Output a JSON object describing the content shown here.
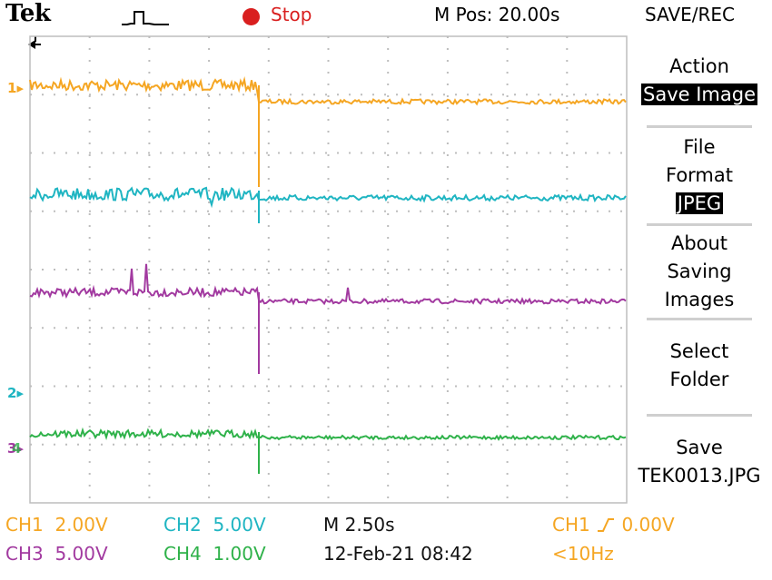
{
  "header": {
    "brand": "Tek",
    "acq_symbol": "trigger-waveform-icon",
    "run_state": "Stop",
    "position": "M Pos: 20.00s",
    "menu_title": "SAVE/REC"
  },
  "menu": {
    "action_label": "Action",
    "action_value": "Save Image",
    "file_format_line1": "File",
    "file_format_line2": "Format",
    "file_format_value": "JPEG",
    "about_line1": "About",
    "about_line2": "Saving",
    "about_line3": "Images",
    "select_folder_line1": "Select",
    "select_folder_line2": "Folder",
    "save_line1": "Save",
    "save_line2": "TEK0013.JPG"
  },
  "markers": {
    "ch1": "1",
    "ch2": "2",
    "ch4": "4",
    "ch3": "3"
  },
  "status": {
    "ch1_label": "CH1",
    "ch1_scale": "2.00V",
    "ch2_label": "CH2",
    "ch2_scale": "5.00V",
    "ch3_label": "CH3",
    "ch3_scale": "5.00V",
    "ch4_label": "CH4",
    "ch4_scale": "1.00V",
    "timebase": "M 2.50s",
    "datetime": "12-Feb-21 08:42",
    "trigger_source": "CH1",
    "trigger_level": "0.00V",
    "trigger_freq": "<10Hz"
  },
  "colors": {
    "ch1": "#f5a623",
    "ch2": "#1fb5c2",
    "ch3": "#a23aa0",
    "ch4": "#2fb24a",
    "stop": "#d91f1f"
  }
}
